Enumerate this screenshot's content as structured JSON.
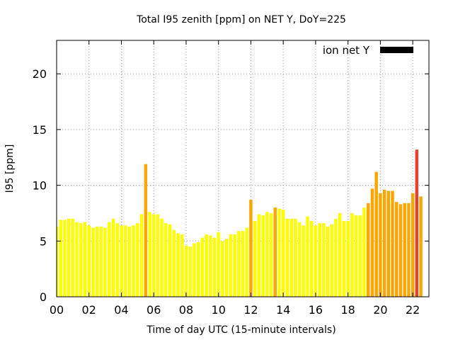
{
  "chart_data": {
    "type": "bar",
    "title": "Total I95 zenith [ppm] on NET Y, DoY=225",
    "xlabel": "Time of day UTC (15-minute intervals)",
    "ylabel": "I95 [ppm]",
    "xlim": [
      0,
      23
    ],
    "ylim": [
      0,
      23
    ],
    "x_ticks": [
      "00",
      "02",
      "04",
      "06",
      "08",
      "10",
      "12",
      "14",
      "16",
      "18",
      "20",
      "22"
    ],
    "x_tick_values": [
      0,
      2,
      4,
      6,
      8,
      10,
      12,
      14,
      16,
      18,
      20,
      22
    ],
    "y_ticks": [
      "0",
      "5",
      "10",
      "15",
      "20"
    ],
    "y_tick_values": [
      0,
      5,
      10,
      15,
      20
    ],
    "grid": true,
    "legend": {
      "label": "ion net Y",
      "placement": "top-right",
      "color": "#000000"
    },
    "colors": {
      "low": "#ffff00",
      "medium": "#ffa500",
      "high": "#e8402a"
    },
    "values": [
      6.3,
      6.9,
      6.9,
      7.0,
      7.0,
      6.7,
      6.6,
      6.7,
      6.4,
      6.2,
      6.3,
      6.3,
      6.2,
      6.7,
      7.0,
      6.6,
      6.4,
      6.4,
      6.3,
      6.4,
      6.6,
      7.4,
      11.9,
      7.6,
      7.4,
      7.4,
      7.0,
      6.6,
      6.5,
      6.0,
      5.7,
      5.6,
      4.6,
      4.5,
      4.8,
      4.9,
      5.3,
      5.6,
      5.5,
      5.3,
      5.8,
      5.0,
      5.2,
      5.6,
      5.6,
      5.9,
      5.9,
      6.2,
      8.7,
      6.8,
      7.4,
      7.3,
      7.6,
      7.5,
      8.0,
      7.9,
      7.8,
      7.0,
      7.0,
      7.0,
      6.7,
      6.4,
      7.2,
      6.8,
      6.4,
      6.6,
      6.6,
      6.3,
      6.5,
      7.0,
      7.5,
      6.8,
      6.8,
      7.5,
      7.3,
      7.3,
      8.0,
      8.4,
      9.7,
      11.2,
      9.3,
      9.6,
      9.5,
      9.5,
      8.5,
      8.3,
      8.4,
      8.4,
      9.3,
      13.2,
      9.0
    ],
    "levels": [
      "low",
      "low",
      "low",
      "low",
      "low",
      "low",
      "low",
      "low",
      "low",
      "low",
      "low",
      "low",
      "low",
      "low",
      "low",
      "low",
      "low",
      "low",
      "low",
      "low",
      "low",
      "low",
      "medium",
      "low",
      "low",
      "low",
      "low",
      "low",
      "low",
      "low",
      "low",
      "low",
      "low",
      "low",
      "low",
      "low",
      "low",
      "low",
      "low",
      "low",
      "low",
      "low",
      "low",
      "low",
      "low",
      "low",
      "low",
      "low",
      "medium",
      "low",
      "low",
      "low",
      "low",
      "low",
      "medium",
      "low",
      "low",
      "low",
      "low",
      "low",
      "low",
      "low",
      "low",
      "low",
      "low",
      "low",
      "low",
      "low",
      "low",
      "low",
      "low",
      "low",
      "low",
      "low",
      "low",
      "low",
      "low",
      "medium",
      "medium",
      "medium",
      "medium",
      "medium",
      "medium",
      "medium",
      "medium",
      "medium",
      "medium",
      "medium",
      "medium",
      "high",
      "medium"
    ]
  }
}
